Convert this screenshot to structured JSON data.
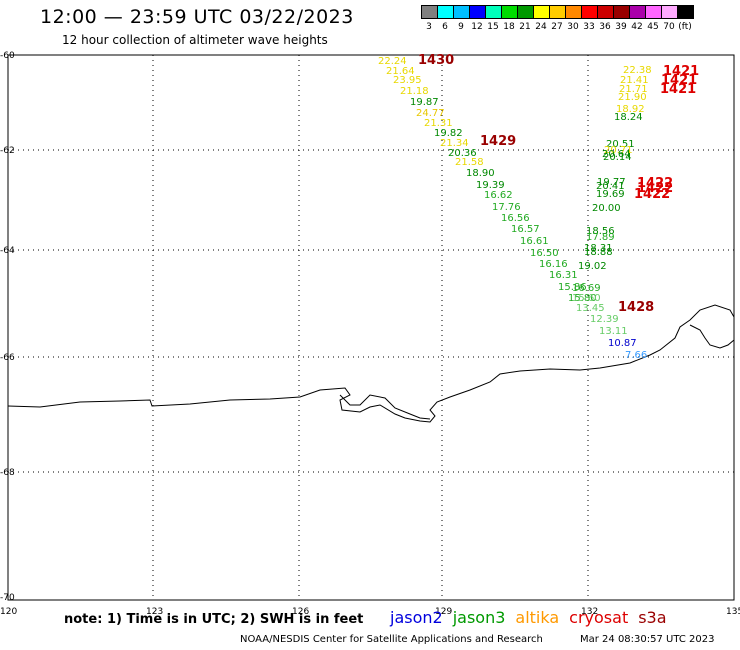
{
  "title": "12:00 — 23:59 UTC 03/22/2023",
  "subtitle": "12 hour collection of altimeter wave heights",
  "colorbar": {
    "colors": [
      "#808080",
      "#00ffff",
      "#00bfff",
      "#0000ff",
      "#00ffbb",
      "#00dd00",
      "#009900",
      "#ffff00",
      "#ffcc00",
      "#ff8800",
      "#ff0000",
      "#cc0000",
      "#990000",
      "#aa00aa",
      "#ff66ff",
      "#ffaaff",
      "#000000"
    ],
    "labels": [
      "3",
      "6",
      "9",
      "12",
      "15",
      "18",
      "21",
      "24",
      "27",
      "30",
      "33",
      "36",
      "39",
      "42",
      "45",
      "70",
      "(ft)"
    ]
  },
  "axes": {
    "lat_labels": [
      "-60",
      "-62",
      "-64",
      "-66",
      "-68",
      "-70"
    ],
    "lon_labels": [
      "120",
      "123",
      "126",
      "129",
      "132",
      "135"
    ]
  },
  "passes": [
    "1430",
    "1429",
    "1428",
    "1421",
    "1421",
    "1421",
    "1422",
    "1422",
    "1422"
  ],
  "note": "note: 1) Time is in UTC; 2) SWH is in feet",
  "legend": {
    "jason2": "jason2",
    "jason3": "jason3",
    "altika": "altika",
    "cryosat": "cryosat",
    "s3a": "s3a",
    "colors": {
      "jason2": "#0000dd",
      "jason3": "#009900",
      "altika": "#ff9900",
      "cryosat": "#dd0000",
      "s3a": "#990000"
    }
  },
  "credit": "NOAA/NESDIS Center for Satellite Applications and Research",
  "timestamp": "Mar 24 08:30:57 UTC 2023",
  "track_a": [
    {
      "v": "22.24",
      "c": "#e8d800"
    },
    {
      "v": "21.64",
      "c": "#e8d800"
    },
    {
      "v": "23.95",
      "c": "#e8d800"
    },
    {
      "v": "21.18",
      "c": "#e8d800"
    },
    {
      "v": "19.87",
      "c": "#008800"
    },
    {
      "v": "24.77",
      "c": "#e8c800"
    },
    {
      "v": "21.31",
      "c": "#e8d800"
    },
    {
      "v": "19.82",
      "c": "#008800"
    },
    {
      "v": "21.34",
      "c": "#e8d800"
    },
    {
      "v": "20.36",
      "c": "#008800"
    },
    {
      "v": "21.58",
      "c": "#e8d800"
    },
    {
      "v": "18.90",
      "c": "#008800"
    },
    {
      "v": "19.39",
      "c": "#008800"
    },
    {
      "v": "16.62",
      "c": "#22aa22"
    },
    {
      "v": "17.76",
      "c": "#22aa22"
    },
    {
      "v": "16.56",
      "c": "#22aa22"
    },
    {
      "v": "16.57",
      "c": "#22aa22"
    },
    {
      "v": "16.61",
      "c": "#22aa22"
    },
    {
      "v": "16.50",
      "c": "#22aa22"
    },
    {
      "v": "16.16",
      "c": "#22aa22"
    },
    {
      "v": "16.31",
      "c": "#22aa22"
    },
    {
      "v": "15.86",
      "c": "#22aa22"
    },
    {
      "v": "15.80",
      "c": "#22aa22"
    }
  ],
  "track_b": [
    {
      "v": "22.38",
      "c": "#e8d800"
    },
    {
      "v": "21.41",
      "c": "#e8d800"
    },
    {
      "v": "21.71",
      "c": "#e8d800"
    },
    {
      "v": "21.90",
      "c": "#e8d800"
    },
    {
      "v": "18.92",
      "c": "#e8d800"
    },
    {
      "v": "18.24",
      "c": "#008800"
    },
    {
      "v": "20.51",
      "c": "#008800"
    },
    {
      "v": "20.71",
      "c": "#e8d800"
    },
    {
      "v": "20.64",
      "c": "#008800"
    },
    {
      "v": "20.14",
      "c": "#008800"
    },
    {
      "v": "19.77",
      "c": "#008800"
    },
    {
      "v": "20.41",
      "c": "#008800"
    },
    {
      "v": "19.69",
      "c": "#008800"
    },
    {
      "v": "20.00",
      "c": "#008800"
    },
    {
      "v": "18.56",
      "c": "#008800"
    },
    {
      "v": "17.89",
      "c": "#22aa22"
    },
    {
      "v": "18.31",
      "c": "#008800"
    },
    {
      "v": "18.88",
      "c": "#008800"
    },
    {
      "v": "19.02",
      "c": "#008800"
    },
    {
      "v": "16.69",
      "c": "#22aa22"
    },
    {
      "v": "15.60",
      "c": "#66cc66"
    },
    {
      "v": "13.45",
      "c": "#66cc66"
    },
    {
      "v": "12.39",
      "c": "#66cc66"
    },
    {
      "v": "13.11",
      "c": "#66cc66"
    },
    {
      "v": "10.87",
      "c": "#0000cc"
    },
    {
      "v": "7.66",
      "c": "#3399ff"
    }
  ]
}
